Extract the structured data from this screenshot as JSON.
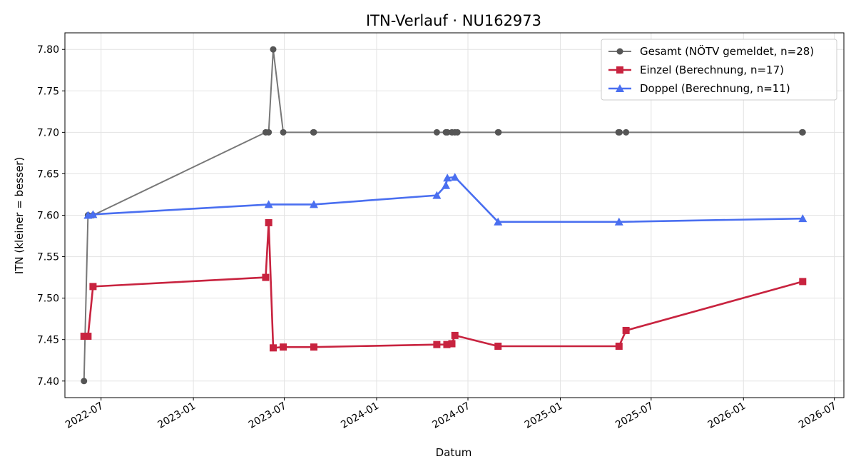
{
  "chart_data": {
    "type": "line",
    "title": "ITN-Verlauf · NU162973",
    "xlabel": "Datum",
    "ylabel": "ITN  (kleiner = besser)",
    "x_axis": "date",
    "xlim": [
      "2022-04-20",
      "2026-07-20"
    ],
    "ylim": [
      7.38,
      7.82
    ],
    "grid": true,
    "legend_position": "top-right",
    "x_ticks": [
      "2022-07-01",
      "2023-01-01",
      "2023-07-01",
      "2024-01-01",
      "2024-07-01",
      "2025-01-01",
      "2025-07-01",
      "2026-01-01",
      "2026-07-01"
    ],
    "x_tick_labels": [
      "2022-07",
      "2023-01",
      "2023-07",
      "2024-01",
      "2024-07",
      "2025-01",
      "2025-07",
      "2026-01",
      "2026-07"
    ],
    "y_ticks": [
      7.4,
      7.45,
      7.5,
      7.55,
      7.6,
      7.65,
      7.7,
      7.75,
      7.8
    ],
    "y_tick_labels": [
      "7.40",
      "7.45",
      "7.50",
      "7.55",
      "7.60",
      "7.65",
      "7.70",
      "7.75",
      "7.80"
    ],
    "series": [
      {
        "name": "Gesamt (NÖTV gemeldet, n=28)",
        "color": "#777777",
        "marker_color": "#555555",
        "marker": "circle",
        "points": [
          [
            "2022-05-28",
            7.4
          ],
          [
            "2022-06-05",
            7.6
          ],
          [
            "2022-06-15",
            7.6
          ],
          [
            "2023-05-25",
            7.7
          ],
          [
            "2023-05-31",
            7.7
          ],
          [
            "2023-06-09",
            7.8
          ],
          [
            "2023-06-29",
            7.7
          ],
          [
            "2023-08-28",
            7.7
          ],
          [
            "2023-08-29",
            7.7
          ],
          [
            "2024-04-30",
            7.7
          ],
          [
            "2024-05-18",
            7.7
          ],
          [
            "2024-05-21",
            7.7
          ],
          [
            "2024-05-30",
            7.7
          ],
          [
            "2024-06-05",
            7.7
          ],
          [
            "2024-06-10",
            7.7
          ],
          [
            "2024-08-30",
            7.7
          ],
          [
            "2024-08-31",
            7.7
          ],
          [
            "2025-04-27",
            7.7
          ],
          [
            "2025-04-29",
            7.7
          ],
          [
            "2025-05-12",
            7.7
          ],
          [
            "2026-04-28",
            7.7
          ],
          [
            "2026-04-29",
            7.7
          ]
        ]
      },
      {
        "name": "Einzel (Berechnung, n=17)",
        "color": "#c8233f",
        "marker_color": "#c8233f",
        "marker": "square",
        "points": [
          [
            "2022-05-28",
            7.454
          ],
          [
            "2022-06-05",
            7.454
          ],
          [
            "2022-06-15",
            7.514
          ],
          [
            "2023-05-25",
            7.525
          ],
          [
            "2023-05-31",
            7.591
          ],
          [
            "2023-06-09",
            7.44
          ],
          [
            "2023-06-29",
            7.441
          ],
          [
            "2023-08-29",
            7.441
          ],
          [
            "2024-04-30",
            7.444
          ],
          [
            "2024-05-20",
            7.444
          ],
          [
            "2024-05-30",
            7.445
          ],
          [
            "2024-06-05",
            7.455
          ],
          [
            "2024-08-30",
            7.442
          ],
          [
            "2025-04-28",
            7.442
          ],
          [
            "2025-05-12",
            7.461
          ],
          [
            "2026-04-29",
            7.52
          ]
        ]
      },
      {
        "name": "Doppel (Berechnung, n=11)",
        "color": "#4a6ff0",
        "marker_color": "#4a6ff0",
        "marker": "triangle",
        "points": [
          [
            "2022-06-05",
            7.6
          ],
          [
            "2022-06-15",
            7.601
          ],
          [
            "2023-05-31",
            7.613
          ],
          [
            "2023-08-29",
            7.613
          ],
          [
            "2024-04-30",
            7.624
          ],
          [
            "2024-05-18",
            7.636
          ],
          [
            "2024-05-21",
            7.645
          ],
          [
            "2024-06-05",
            7.646
          ],
          [
            "2024-08-30",
            7.592
          ],
          [
            "2025-04-28",
            7.592
          ],
          [
            "2026-04-29",
            7.596
          ]
        ]
      }
    ]
  }
}
